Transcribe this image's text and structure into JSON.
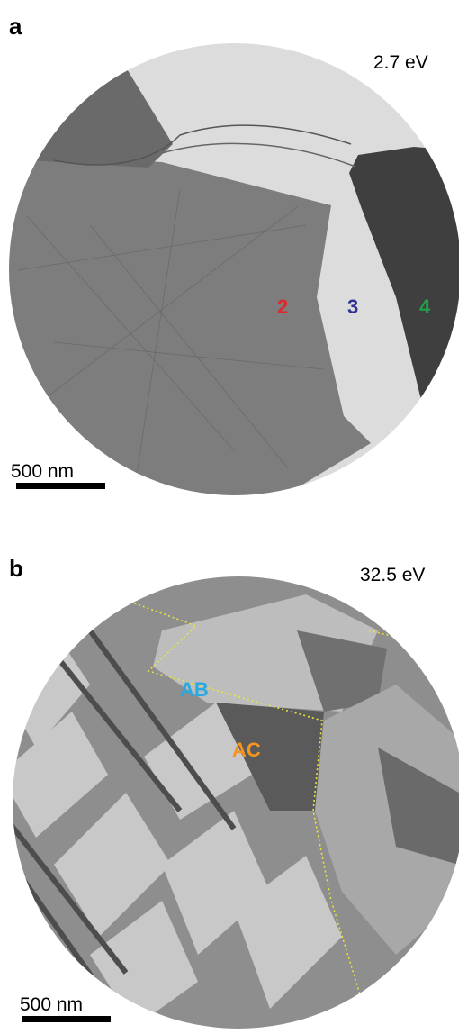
{
  "panels": [
    {
      "label": "a",
      "energy": "2.7 eV",
      "scale_bar": "500 nm",
      "annotations": [
        {
          "text": "2",
          "color": "#e3262b"
        },
        {
          "text": "3",
          "color": "#2e3192"
        },
        {
          "text": "4",
          "color": "#1fa14a"
        }
      ]
    },
    {
      "label": "b",
      "energy": "32.5 eV",
      "scale_bar": "500 nm",
      "annotations": [
        {
          "text": "AB",
          "color": "#29a9e1"
        },
        {
          "text": "AC",
          "color": "#f7941d"
        }
      ]
    }
  ]
}
